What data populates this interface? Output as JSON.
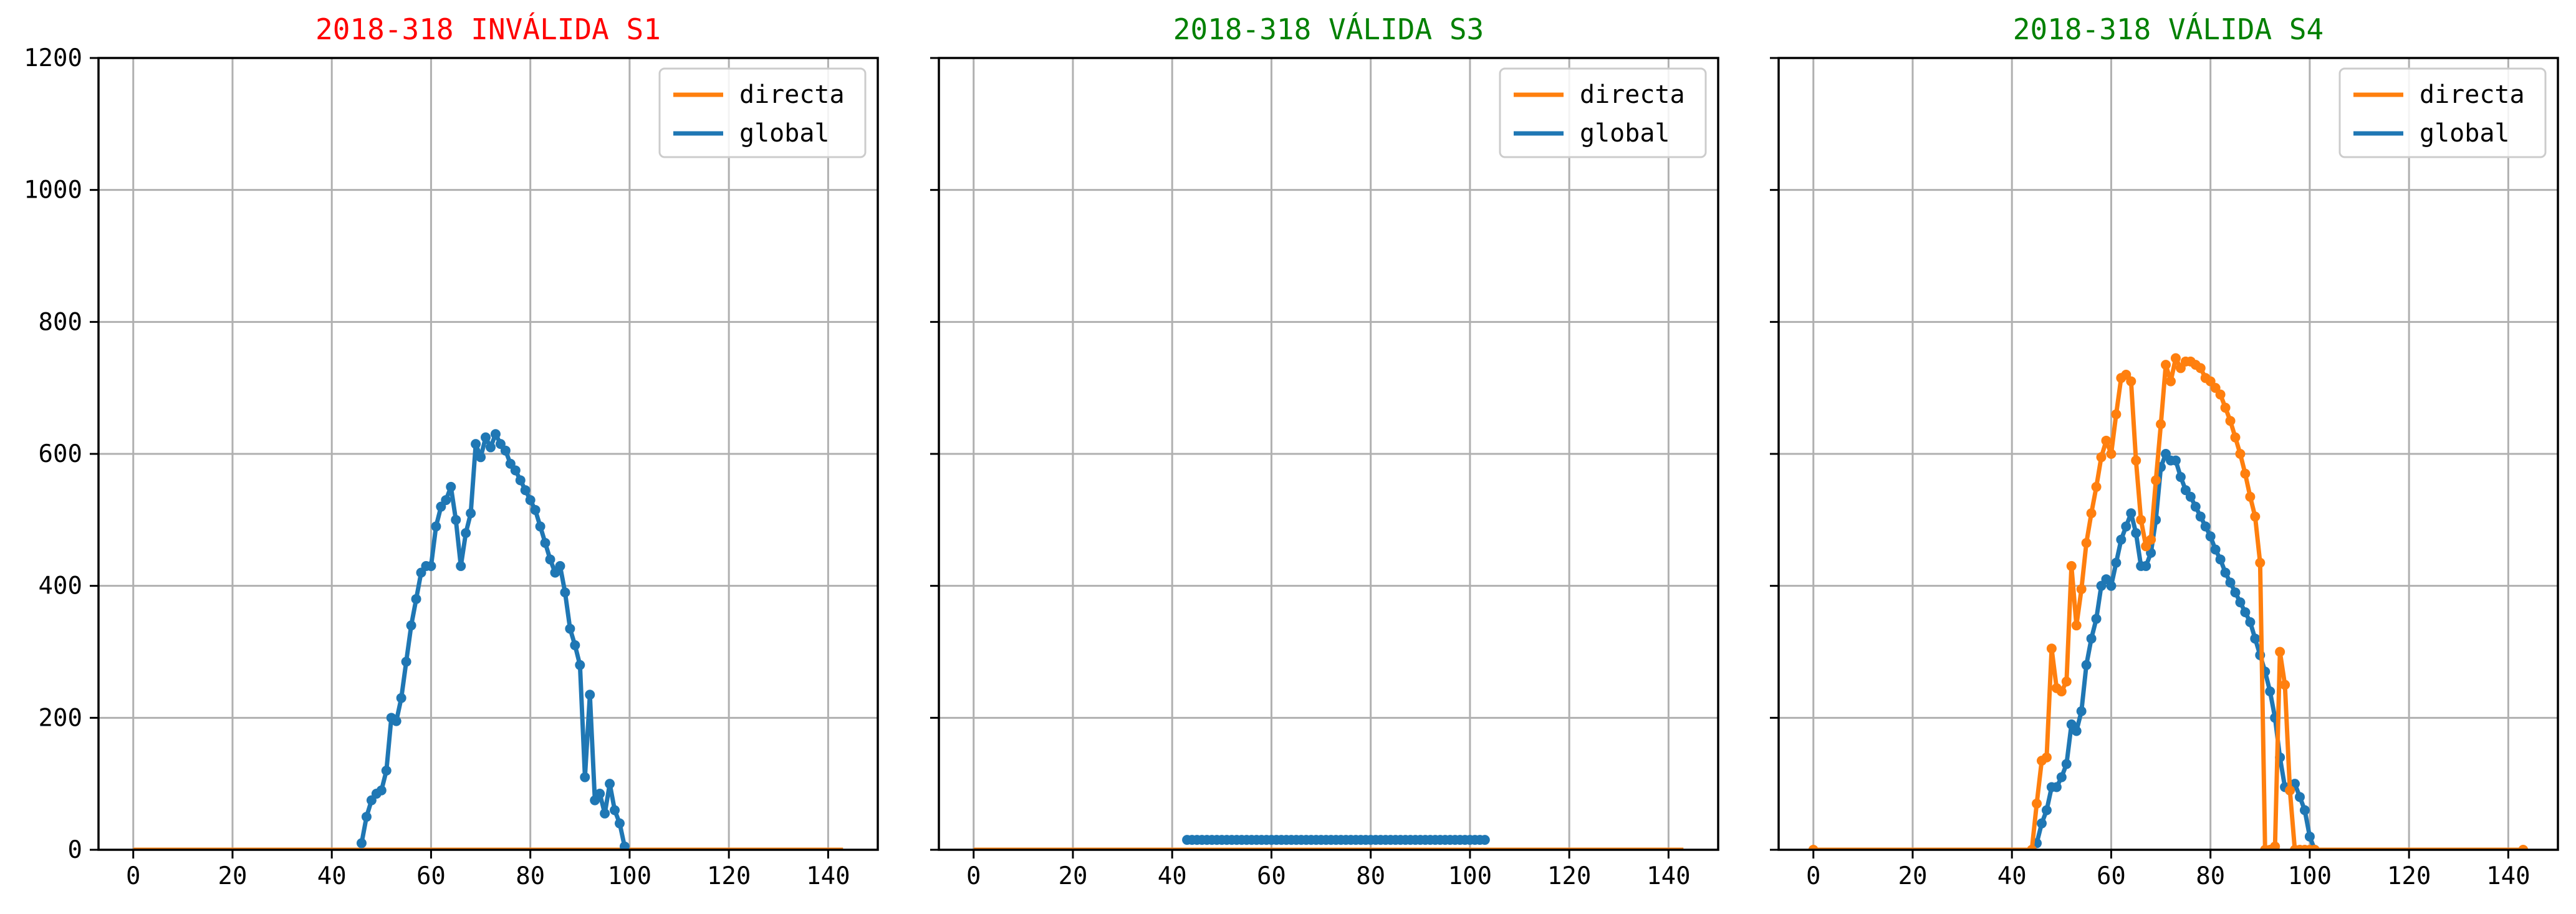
{
  "chart_data": [
    {
      "type": "line",
      "title": "2018-318 INVÁLIDA S1",
      "title_color": "#ff0000",
      "xlim": [
        -7,
        150
      ],
      "ylim": [
        0,
        1200
      ],
      "x_ticks": [
        0,
        20,
        40,
        60,
        80,
        100,
        120,
        140
      ],
      "y_ticks": [
        0,
        200,
        400,
        600,
        800,
        1000,
        1200
      ],
      "y_tick_labels_shown": true,
      "grid": true,
      "legend": "top-right",
      "legend_entries": [
        "directa",
        "global"
      ],
      "series": [
        {
          "name": "directa",
          "color": "#ff7f0e",
          "markers": false,
          "x": [
            0,
            143
          ],
          "y": [
            0,
            0
          ]
        },
        {
          "name": "global",
          "color": "#1f77b4",
          "markers": true,
          "x": [
            46,
            47,
            48,
            49,
            50,
            51,
            52,
            53,
            54,
            55,
            56,
            57,
            58,
            59,
            60,
            61,
            62,
            63,
            64,
            65,
            66,
            67,
            68,
            69,
            70,
            71,
            72,
            73,
            74,
            75,
            76,
            77,
            78,
            79,
            80,
            81,
            82,
            83,
            84,
            85,
            86,
            87,
            88,
            89,
            90,
            91,
            92,
            93,
            94,
            95,
            96,
            97,
            98,
            99
          ],
          "y": [
            10,
            50,
            75,
            85,
            90,
            120,
            200,
            195,
            230,
            285,
            340,
            380,
            420,
            430,
            430,
            490,
            520,
            530,
            550,
            500,
            430,
            480,
            510,
            615,
            595,
            625,
            610,
            630,
            615,
            605,
            585,
            575,
            560,
            545,
            530,
            515,
            490,
            465,
            440,
            420,
            430,
            390,
            335,
            310,
            280,
            110,
            235,
            75,
            85,
            55,
            100,
            60,
            40,
            5
          ]
        }
      ]
    },
    {
      "type": "line",
      "title": "2018-318 VÁLIDA S3",
      "title_color": "#008000",
      "xlim": [
        -7,
        150
      ],
      "ylim": [
        0,
        1200
      ],
      "x_ticks": [
        0,
        20,
        40,
        60,
        80,
        100,
        120,
        140
      ],
      "y_ticks": [
        0,
        200,
        400,
        600,
        800,
        1000,
        1200
      ],
      "y_tick_labels_shown": false,
      "grid": true,
      "legend": "top-right",
      "legend_entries": [
        "directa",
        "global"
      ],
      "series": [
        {
          "name": "directa",
          "color": "#ff7f0e",
          "markers": false,
          "x": [
            0,
            143
          ],
          "y": [
            0,
            0
          ]
        },
        {
          "name": "global",
          "color": "#1f77b4",
          "markers": true,
          "x": [
            43,
            44,
            45,
            46,
            47,
            48,
            49,
            50,
            51,
            52,
            53,
            54,
            55,
            56,
            57,
            58,
            59,
            60,
            61,
            62,
            63,
            64,
            65,
            66,
            67,
            68,
            69,
            70,
            71,
            72,
            73,
            74,
            75,
            76,
            77,
            78,
            79,
            80,
            81,
            82,
            83,
            84,
            85,
            86,
            87,
            88,
            89,
            90,
            91,
            92,
            93,
            94,
            95,
            96,
            97,
            98,
            99,
            100,
            101,
            102,
            103
          ],
          "y": [
            15,
            15,
            15,
            15,
            15,
            15,
            15,
            15,
            15,
            15,
            15,
            15,
            15,
            15,
            15,
            15,
            15,
            15,
            15,
            15,
            15,
            15,
            15,
            15,
            15,
            15,
            15,
            15,
            15,
            15,
            15,
            15,
            15,
            15,
            15,
            15,
            15,
            15,
            15,
            15,
            15,
            15,
            15,
            15,
            15,
            15,
            15,
            15,
            15,
            15,
            15,
            15,
            15,
            15,
            15,
            15,
            15,
            15,
            15,
            15,
            15
          ]
        }
      ]
    },
    {
      "type": "line",
      "title": "2018-318 VÁLIDA S4",
      "title_color": "#008000",
      "xlim": [
        -7,
        150
      ],
      "ylim": [
        0,
        1200
      ],
      "x_ticks": [
        0,
        20,
        40,
        60,
        80,
        100,
        120,
        140
      ],
      "y_ticks": [
        0,
        200,
        400,
        600,
        800,
        1000,
        1200
      ],
      "y_tick_labels_shown": false,
      "grid": true,
      "legend": "top-right",
      "legend_entries": [
        "directa",
        "global"
      ],
      "series": [
        {
          "name": "global",
          "color": "#1f77b4",
          "markers": true,
          "x": [
            45,
            46,
            47,
            48,
            49,
            50,
            51,
            52,
            53,
            54,
            55,
            56,
            57,
            58,
            59,
            60,
            61,
            62,
            63,
            64,
            65,
            66,
            67,
            68,
            69,
            70,
            71,
            72,
            73,
            74,
            75,
            76,
            77,
            78,
            79,
            80,
            81,
            82,
            83,
            84,
            85,
            86,
            87,
            88,
            89,
            90,
            91,
            92,
            93,
            94,
            95,
            96,
            97,
            98,
            99,
            100,
            101
          ],
          "y": [
            10,
            40,
            60,
            95,
            95,
            110,
            130,
            190,
            180,
            210,
            280,
            320,
            350,
            400,
            410,
            400,
            435,
            470,
            490,
            510,
            480,
            430,
            430,
            450,
            500,
            580,
            600,
            590,
            590,
            565,
            545,
            535,
            520,
            505,
            490,
            475,
            455,
            440,
            420,
            405,
            390,
            375,
            360,
            345,
            320,
            295,
            270,
            240,
            200,
            140,
            95,
            90,
            100,
            80,
            60,
            20,
            0
          ]
        },
        {
          "name": "directa",
          "color": "#ff7f0e",
          "markers": true,
          "x": [
            0,
            44,
            45,
            46,
            47,
            48,
            49,
            50,
            51,
            52,
            53,
            54,
            55,
            56,
            57,
            58,
            59,
            60,
            61,
            62,
            63,
            64,
            65,
            66,
            67,
            68,
            69,
            70,
            71,
            72,
            73,
            74,
            75,
            76,
            77,
            78,
            79,
            80,
            81,
            82,
            83,
            84,
            85,
            86,
            87,
            88,
            89,
            90,
            91,
            92,
            93,
            94,
            95,
            96,
            97,
            98,
            99,
            100,
            101,
            143
          ],
          "y": [
            0,
            0,
            70,
            135,
            140,
            305,
            245,
            240,
            255,
            430,
            340,
            395,
            465,
            510,
            550,
            595,
            620,
            600,
            660,
            715,
            720,
            710,
            590,
            500,
            460,
            470,
            560,
            645,
            735,
            710,
            745,
            730,
            740,
            740,
            735,
            730,
            715,
            710,
            700,
            690,
            670,
            650,
            625,
            600,
            570,
            535,
            505,
            435,
            0,
            0,
            5,
            300,
            250,
            90,
            0,
            0,
            0,
            0,
            0,
            0
          ]
        }
      ]
    }
  ]
}
